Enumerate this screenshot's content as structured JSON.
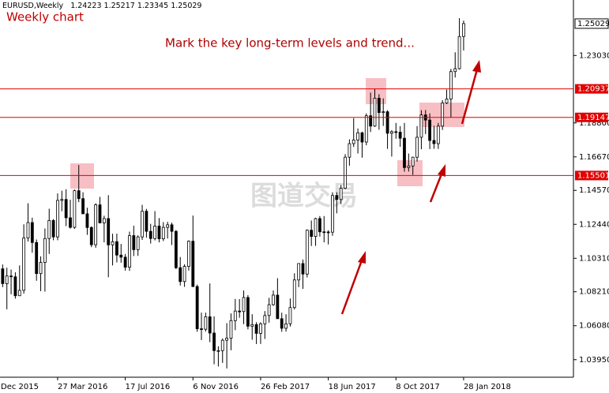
{
  "chart_data": {
    "type": "candlestick",
    "symbol": "EURUSD,Weekly",
    "title": "Weekly chart",
    "annotation": "Mark the key long-term levels and trend...",
    "watermark": "图道交易",
    "ylim": [
      1.0285,
      1.2651
    ],
    "yticks": [
      {
        "value": 1.2303,
        "label": "1.23030"
      },
      {
        "value": 1.188,
        "label": "1.18800"
      },
      {
        "value": 1.1667,
        "label": "1.16670"
      },
      {
        "value": 1.1457,
        "label": "1.14570"
      },
      {
        "value": 1.1244,
        "label": "1.12440"
      },
      {
        "value": 1.1031,
        "label": "1.10310"
      },
      {
        "value": 1.0821,
        "label": "1.08210"
      },
      {
        "value": 1.0608,
        "label": "1.06080"
      },
      {
        "value": 1.0395,
        "label": "1.03950"
      }
    ],
    "levels": [
      1.20937,
      1.19147,
      1.15501
    ],
    "level_color": "#e00000",
    "categories": [
      "Dec 2015",
      null,
      null,
      null,
      null,
      null,
      null,
      null,
      null,
      null,
      null,
      null,
      null,
      null,
      "27 Mar 2016",
      null,
      null,
      null,
      null,
      null,
      null,
      null,
      null,
      null,
      null,
      null,
      null,
      null,
      null,
      null,
      "17 Jul 2016",
      null,
      null,
      null,
      null,
      null,
      null,
      null,
      null,
      null,
      null,
      null,
      null,
      null,
      null,
      null,
      "6 Nov 2016",
      null,
      null,
      null,
      null,
      null,
      null,
      null,
      null,
      null,
      null,
      null,
      null,
      null,
      null,
      null,
      "26 Feb 2017",
      null,
      null,
      null,
      null,
      null,
      null,
      null,
      null,
      null,
      null,
      null,
      null,
      null,
      null,
      null,
      "18 Jun 2017",
      null,
      null,
      null,
      null,
      null,
      null,
      null,
      null,
      null,
      null,
      null,
      null,
      null,
      null,
      null,
      "8 Oct 2017",
      null,
      null,
      null,
      null,
      null,
      null,
      null,
      null,
      null,
      null,
      null,
      null,
      null,
      null,
      null,
      "28 Jan 2018"
    ],
    "candles": [
      [
        1.0942,
        1.0995,
        1.0882,
        1.0965
      ],
      [
        1.0965,
        1.0992,
        1.085,
        1.0872
      ],
      [
        1.0872,
        1.0972,
        1.0711,
        1.092
      ],
      [
        1.092,
        1.096,
        1.0805,
        1.0915
      ],
      [
        1.0915,
        1.0943,
        1.0778,
        1.0796
      ],
      [
        1.0796,
        1.0986,
        1.0795,
        1.083
      ],
      [
        1.083,
        1.1244,
        1.0809,
        1.1158
      ],
      [
        1.1158,
        1.1376,
        1.1136,
        1.1255
      ],
      [
        1.1255,
        1.1286,
        1.1066,
        1.113
      ],
      [
        1.113,
        1.1149,
        1.089,
        1.0935
      ],
      [
        1.0935,
        1.1043,
        1.0825,
        1.1005
      ],
      [
        1.1005,
        1.1218,
        1.0822,
        1.1155
      ],
      [
        1.1155,
        1.1342,
        1.1058,
        1.1268
      ],
      [
        1.1268,
        1.1277,
        1.1144,
        1.1165
      ],
      [
        1.1165,
        1.1438,
        1.1144,
        1.1394
      ],
      [
        1.1394,
        1.1455,
        1.1326,
        1.14
      ],
      [
        1.14,
        1.1464,
        1.1233,
        1.1285
      ],
      [
        1.1285,
        1.1398,
        1.1217,
        1.1225
      ],
      [
        1.1225,
        1.1462,
        1.1215,
        1.1455
      ],
      [
        1.1455,
        1.1616,
        1.1383,
        1.1405
      ],
      [
        1.1405,
        1.1445,
        1.1318,
        1.131
      ],
      [
        1.131,
        1.1348,
        1.1178,
        1.1224
      ],
      [
        1.1224,
        1.1232,
        1.1101,
        1.1116
      ],
      [
        1.1116,
        1.1376,
        1.1097,
        1.1366
      ],
      [
        1.1366,
        1.1416,
        1.125,
        1.1253
      ],
      [
        1.1253,
        1.1298,
        1.1131,
        1.128
      ],
      [
        1.128,
        1.1427,
        1.0912,
        1.1115
      ],
      [
        1.1115,
        1.1185,
        1.0986,
        1.1135
      ],
      [
        1.1135,
        1.1186,
        1.1005,
        1.1051
      ],
      [
        1.1051,
        1.1121,
        1.1003,
        1.1038
      ],
      [
        1.1038,
        1.1058,
        1.0953,
        1.0975
      ],
      [
        1.0975,
        1.1198,
        1.0952,
        1.1173
      ],
      [
        1.1173,
        1.1235,
        1.1045,
        1.1085
      ],
      [
        1.1085,
        1.1175,
        1.1046,
        1.1165
      ],
      [
        1.1165,
        1.1366,
        1.1146,
        1.1326
      ],
      [
        1.1326,
        1.1341,
        1.116,
        1.12
      ],
      [
        1.12,
        1.1247,
        1.1123,
        1.1155
      ],
      [
        1.1155,
        1.1327,
        1.1143,
        1.1233
      ],
      [
        1.1233,
        1.1283,
        1.1131,
        1.1153
      ],
      [
        1.1153,
        1.1258,
        1.1139,
        1.1225
      ],
      [
        1.1225,
        1.126,
        1.1155,
        1.1241
      ],
      [
        1.1241,
        1.1255,
        1.1114,
        1.12
      ],
      [
        1.12,
        1.1208,
        1.0963,
        1.0972
      ],
      [
        1.0972,
        1.1039,
        1.086,
        1.0885
      ],
      [
        1.0885,
        1.0993,
        1.0852,
        1.098
      ],
      [
        1.098,
        1.1143,
        1.0954,
        1.1138
      ],
      [
        1.1138,
        1.1299,
        1.085,
        1.0854
      ],
      [
        1.0854,
        1.0866,
        1.057,
        1.0589
      ],
      [
        1.0589,
        1.069,
        1.0518,
        1.0586
      ],
      [
        1.0586,
        1.069,
        1.0571,
        1.0664
      ],
      [
        1.0664,
        1.0873,
        1.0505,
        1.0562
      ],
      [
        1.0562,
        1.0667,
        1.0366,
        1.0452
      ],
      [
        1.0452,
        1.0479,
        1.0352,
        1.0452
      ],
      [
        1.0452,
        1.0528,
        1.0375,
        1.0517
      ],
      [
        1.0517,
        1.0624,
        1.034,
        1.053
      ],
      [
        1.053,
        1.0685,
        1.0454,
        1.064
      ],
      [
        1.064,
        1.0776,
        1.058,
        1.07
      ],
      [
        1.07,
        1.0775,
        1.0658,
        1.0697
      ],
      [
        1.0697,
        1.0829,
        1.0618,
        1.0785
      ],
      [
        1.0785,
        1.08,
        1.0585,
        1.0605
      ],
      [
        1.0605,
        1.068,
        1.052,
        1.0615
      ],
      [
        1.0615,
        1.063,
        1.0493,
        1.056
      ],
      [
        1.056,
        1.063,
        1.0494,
        1.062
      ],
      [
        1.062,
        1.07,
        1.0525,
        1.0672
      ],
      [
        1.0672,
        1.0783,
        1.0627,
        1.074
      ],
      [
        1.074,
        1.0829,
        1.0733,
        1.08
      ],
      [
        1.08,
        1.0906,
        1.0654,
        1.0652
      ],
      [
        1.0652,
        1.069,
        1.057,
        1.0592
      ],
      [
        1.0592,
        1.068,
        1.0571,
        1.062
      ],
      [
        1.062,
        1.0779,
        1.0603,
        1.0722
      ],
      [
        1.0722,
        1.0937,
        1.071,
        1.0895
      ],
      [
        1.0895,
        1.0998,
        1.085,
        1.0998
      ],
      [
        1.0998,
        1.1023,
        1.0839,
        1.0932
      ],
      [
        1.0932,
        1.1212,
        1.0911,
        1.1207
      ],
      [
        1.1207,
        1.1268,
        1.1108,
        1.1168
      ],
      [
        1.1168,
        1.1285,
        1.1109,
        1.128
      ],
      [
        1.128,
        1.1296,
        1.1167,
        1.1197
      ],
      [
        1.1197,
        1.1296,
        1.1131,
        1.1196
      ],
      [
        1.1196,
        1.1207,
        1.1118,
        1.1195
      ],
      [
        1.1195,
        1.1445,
        1.1172,
        1.1425
      ],
      [
        1.1425,
        1.1445,
        1.1313,
        1.14
      ],
      [
        1.14,
        1.149,
        1.1371,
        1.147
      ],
      [
        1.147,
        1.1684,
        1.1465,
        1.1665
      ],
      [
        1.1665,
        1.1777,
        1.1612,
        1.175
      ],
      [
        1.175,
        1.191,
        1.1729,
        1.1773
      ],
      [
        1.1773,
        1.1845,
        1.1688,
        1.1818
      ],
      [
        1.1818,
        1.1825,
        1.1662,
        1.176
      ],
      [
        1.176,
        1.194,
        1.174,
        1.1925
      ],
      [
        1.1925,
        1.207,
        1.1823,
        1.186
      ],
      [
        1.186,
        1.2092,
        1.1855,
        1.2035
      ],
      [
        1.2035,
        1.206,
        1.1837,
        1.1945
      ],
      [
        1.1945,
        1.2034,
        1.1861,
        1.195
      ],
      [
        1.195,
        1.196,
        1.1717,
        1.1815
      ],
      [
        1.1815,
        1.1835,
        1.1669,
        1.1825
      ],
      [
        1.1825,
        1.188,
        1.1781,
        1.1822
      ],
      [
        1.1822,
        1.186,
        1.173,
        1.1784
      ],
      [
        1.1784,
        1.188,
        1.1574,
        1.16
      ],
      [
        1.16,
        1.1688,
        1.1575,
        1.161
      ],
      [
        1.161,
        1.1668,
        1.1554,
        1.1665
      ],
      [
        1.1665,
        1.186,
        1.1637,
        1.179
      ],
      [
        1.179,
        1.196,
        1.1715,
        1.193
      ],
      [
        1.193,
        1.1961,
        1.181,
        1.1898
      ],
      [
        1.1898,
        1.194,
        1.1716,
        1.177
      ],
      [
        1.177,
        1.1862,
        1.1718,
        1.175
      ],
      [
        1.175,
        1.188,
        1.1717,
        1.186
      ],
      [
        1.186,
        1.2023,
        1.1836,
        1.2005
      ],
      [
        1.2005,
        1.2089,
        1.1998,
        1.203
      ],
      [
        1.203,
        1.2219,
        1.1915,
        1.2202
      ],
      [
        1.2202,
        1.2323,
        1.2165,
        1.222
      ],
      [
        1.222,
        1.2537,
        1.2215,
        1.2422
      ],
      [
        1.24223,
        1.25217,
        1.23345,
        1.25029
      ]
    ]
  }
}
